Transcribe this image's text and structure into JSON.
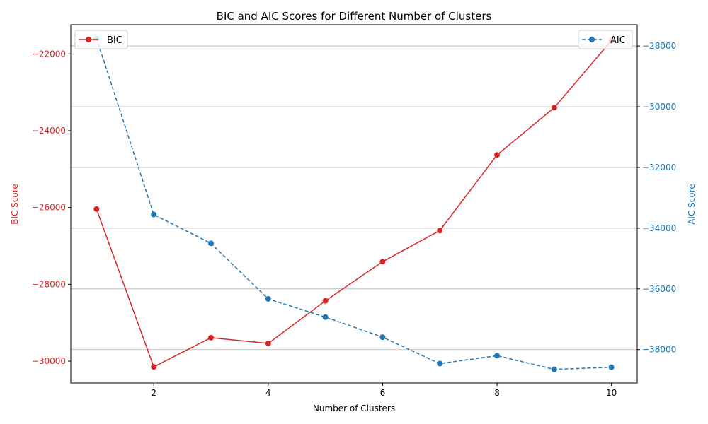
{
  "chart_data": {
    "type": "line",
    "title": "BIC and AIC Scores for Different Number of Clusters",
    "xlabel": "Number of Clusters",
    "ylabel_left": "BIC Score",
    "ylabel_right": "AIC Score",
    "x": [
      1,
      2,
      3,
      4,
      5,
      6,
      7,
      8,
      9,
      10
    ],
    "xlim": [
      0.55,
      10.45
    ],
    "xticks": [
      2,
      4,
      6,
      8,
      10
    ],
    "ylim_left": [
      -30570,
      -21240
    ],
    "yticks_left": [
      -30000,
      -28000,
      -26000,
      -24000,
      -22000
    ],
    "ylim_right": [
      -39100,
      -27300
    ],
    "yticks_right": [
      -38000,
      -36000,
      -34000,
      -32000,
      -30000,
      -28000
    ],
    "grid": "horizontal lines at right-axis ticks",
    "series": [
      {
        "name": "BIC",
        "axis": "left",
        "color": "#d62728",
        "linestyle": "solid",
        "marker": "circle",
        "legend_position": "top-left",
        "values": [
          -26040,
          -30150,
          -29390,
          -29540,
          -28430,
          -27410,
          -26600,
          -24630,
          -23400,
          -21650
        ]
      },
      {
        "name": "AIC",
        "axis": "right",
        "color": "#1f77b4",
        "linestyle": "dashed",
        "marker": "circle",
        "legend_position": "top-right",
        "values": [
          -27750,
          -33550,
          -34500,
          -36330,
          -36930,
          -37590,
          -38460,
          -38200,
          -38650,
          -38580
        ]
      }
    ]
  }
}
